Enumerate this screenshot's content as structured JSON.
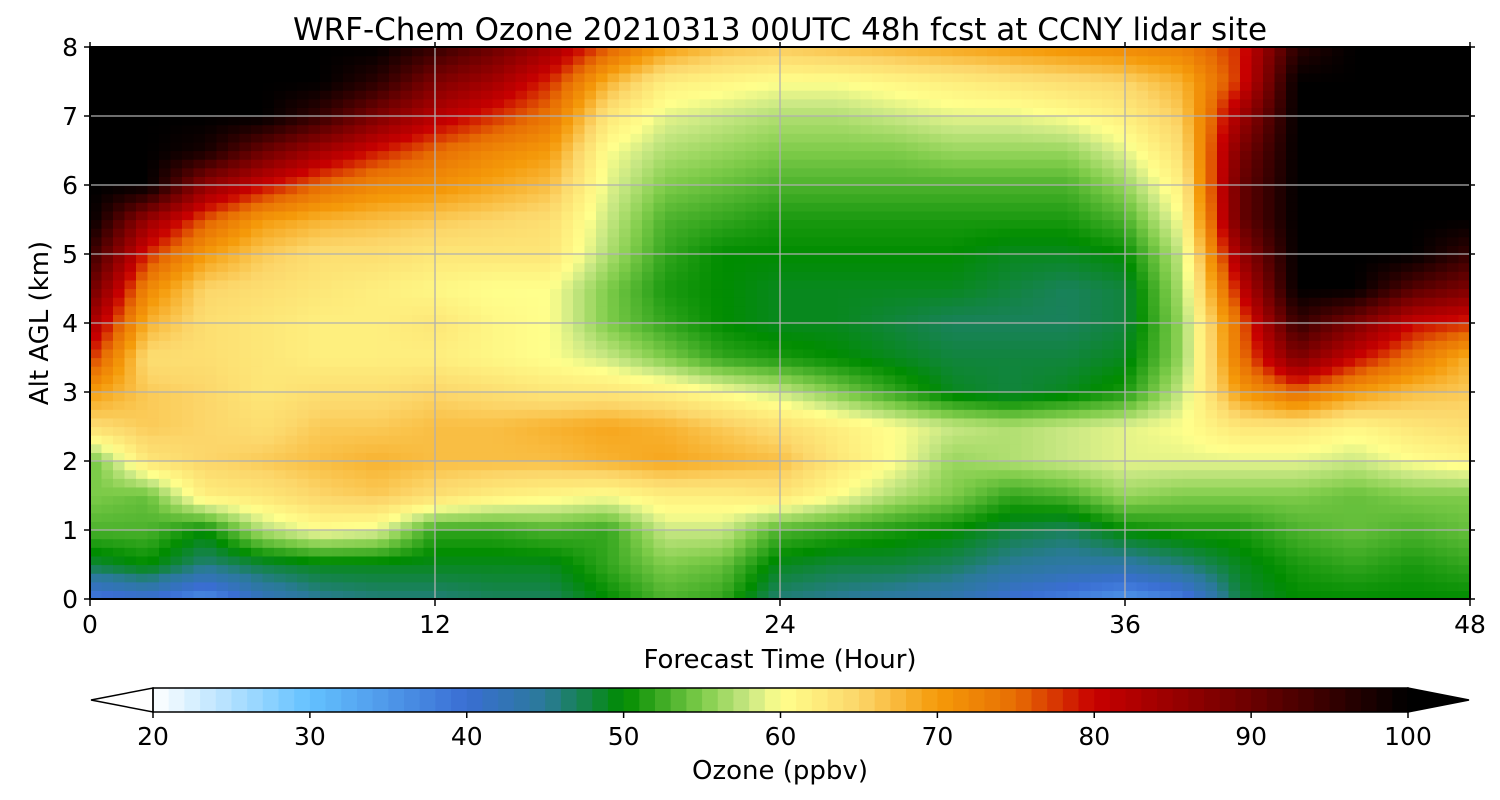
{
  "chart_data": {
    "type": "heatmap",
    "title": "WRF-Chem Ozone  20210313 00UTC 48h fcst at CCNY lidar site",
    "xlabel": "Forecast Time (Hour)",
    "ylabel": "Alt AGL (km)",
    "xlim": [
      0,
      48
    ],
    "ylim": [
      0,
      8
    ],
    "xticks": [
      "0",
      "12",
      "24",
      "36",
      "48"
    ],
    "yticks": [
      "0",
      "1",
      "2",
      "3",
      "4",
      "5",
      "6",
      "7",
      "8"
    ],
    "grid": true,
    "x": [
      0,
      2,
      4,
      6,
      8,
      10,
      12,
      14,
      16,
      18,
      20,
      22,
      24,
      26,
      28,
      30,
      32,
      34,
      36,
      38,
      40,
      42,
      44,
      46,
      48
    ],
    "y": [
      0,
      0.5,
      1,
      1.5,
      2,
      2.5,
      3,
      3.5,
      4,
      4.5,
      5,
      5.5,
      6,
      6.5,
      7,
      7.5,
      8
    ],
    "z": [
      [
        38,
        40,
        36,
        42,
        45,
        46,
        46,
        47,
        47,
        50,
        53,
        52,
        46,
        45,
        44,
        43,
        40,
        38,
        35,
        38,
        48,
        50,
        50,
        50,
        50
      ],
      [
        48,
        50,
        46,
        48,
        49,
        49,
        49,
        49,
        49,
        52,
        55,
        54,
        49,
        48,
        48,
        47,
        45,
        44,
        44,
        46,
        49,
        51,
        52,
        51,
        52
      ],
      [
        53,
        53,
        50,
        57,
        60,
        59,
        52,
        52,
        53,
        52,
        58,
        58,
        53,
        52,
        51,
        50,
        48,
        47,
        50,
        51,
        51,
        53,
        54,
        53,
        54
      ],
      [
        55,
        54,
        62,
        63,
        65,
        66,
        64,
        62,
        61,
        60,
        62,
        62,
        63,
        60,
        57,
        55,
        52,
        53,
        56,
        55,
        55,
        55,
        54,
        55,
        55
      ],
      [
        54,
        63,
        65,
        66,
        67,
        68,
        67,
        67,
        67,
        68,
        69,
        68,
        67,
        63,
        60,
        56,
        57,
        58,
        59,
        59,
        59,
        59,
        58,
        60,
        61
      ],
      [
        64,
        66,
        65,
        64,
        66,
        66,
        67,
        67,
        68,
        69,
        68,
        66,
        64,
        62,
        60,
        58,
        57,
        58,
        59,
        60,
        63,
        63,
        61,
        63,
        64
      ],
      [
        70,
        66,
        65,
        63,
        64,
        64,
        65,
        64,
        63,
        63,
        62,
        60,
        58,
        55,
        52,
        49,
        48,
        49,
        51,
        58,
        70,
        75,
        70,
        67,
        66
      ],
      [
        78,
        64,
        64,
        63,
        62,
        62,
        62,
        61,
        60,
        58,
        55,
        52,
        51,
        50,
        49,
        48,
        48,
        48,
        49,
        56,
        74,
        88,
        80,
        74,
        68
      ],
      [
        84,
        68,
        64,
        63,
        62,
        62,
        63,
        61,
        60,
        55,
        52,
        50,
        49,
        49,
        48,
        47,
        47,
        47,
        48,
        56,
        75,
        95,
        88,
        80,
        78
      ],
      [
        90,
        72,
        65,
        64,
        63,
        62,
        61,
        60,
        60,
        55,
        51,
        50,
        49,
        49,
        49,
        49,
        48,
        47,
        48,
        57,
        80,
        100,
        100,
        92,
        88
      ],
      [
        95,
        78,
        70,
        66,
        64,
        64,
        63,
        63,
        63,
        57,
        52,
        50,
        50,
        50,
        50,
        50,
        49,
        49,
        50,
        58,
        85,
        100,
        100,
        100,
        95
      ],
      [
        100,
        85,
        76,
        70,
        68,
        67,
        66,
        65,
        64,
        58,
        53,
        52,
        51,
        51,
        51,
        51,
        51,
        51,
        53,
        60,
        90,
        100,
        100,
        100,
        100
      ],
      [
        100,
        100,
        86,
        80,
        75,
        72,
        71,
        69,
        67,
        59,
        55,
        54,
        53,
        53,
        53,
        53,
        53,
        53,
        56,
        62,
        90,
        100,
        100,
        100,
        100
      ],
      [
        100,
        100,
        98,
        90,
        84,
        79,
        75,
        72,
        70,
        60,
        57,
        56,
        55,
        55,
        55,
        56,
        56,
        56,
        59,
        64,
        88,
        100,
        100,
        100,
        100
      ],
      [
        100,
        100,
        100,
        100,
        95,
        88,
        82,
        78,
        74,
        63,
        59,
        58,
        57,
        57,
        58,
        59,
        59,
        60,
        62,
        66,
        84,
        100,
        100,
        100,
        100
      ],
      [
        100,
        100,
        100,
        100,
        100,
        96,
        88,
        84,
        78,
        68,
        62,
        61,
        60,
        60,
        61,
        62,
        63,
        64,
        65,
        68,
        78,
        100,
        100,
        100,
        100
      ],
      [
        100,
        100,
        100,
        100,
        100,
        100,
        95,
        90,
        84,
        76,
        70,
        67,
        66,
        67,
        68,
        69,
        70,
        71,
        72,
        73,
        78,
        96,
        100,
        100,
        100
      ]
    ],
    "colorbar": {
      "label": "Ozone  (ppbv)",
      "min": 20,
      "max": 100,
      "ticks": [
        "20",
        "30",
        "40",
        "50",
        "60",
        "70",
        "80",
        "90",
        "100"
      ],
      "extend": "both",
      "stops": [
        {
          "v": 20,
          "c": "#ffffff"
        },
        {
          "v": 30,
          "c": "#63c1ff"
        },
        {
          "v": 40,
          "c": "#3a6ed3"
        },
        {
          "v": 45,
          "c": "#2a7a98"
        },
        {
          "v": 50,
          "c": "#008c00"
        },
        {
          "v": 55,
          "c": "#7fcc4a"
        },
        {
          "v": 58,
          "c": "#c9e884"
        },
        {
          "v": 60,
          "c": "#ffff8c"
        },
        {
          "v": 65,
          "c": "#fcd66a"
        },
        {
          "v": 70,
          "c": "#f59a09"
        },
        {
          "v": 75,
          "c": "#e76d03"
        },
        {
          "v": 80,
          "c": "#c80000"
        },
        {
          "v": 90,
          "c": "#6b0000"
        },
        {
          "v": 100,
          "c": "#000000"
        }
      ]
    }
  }
}
